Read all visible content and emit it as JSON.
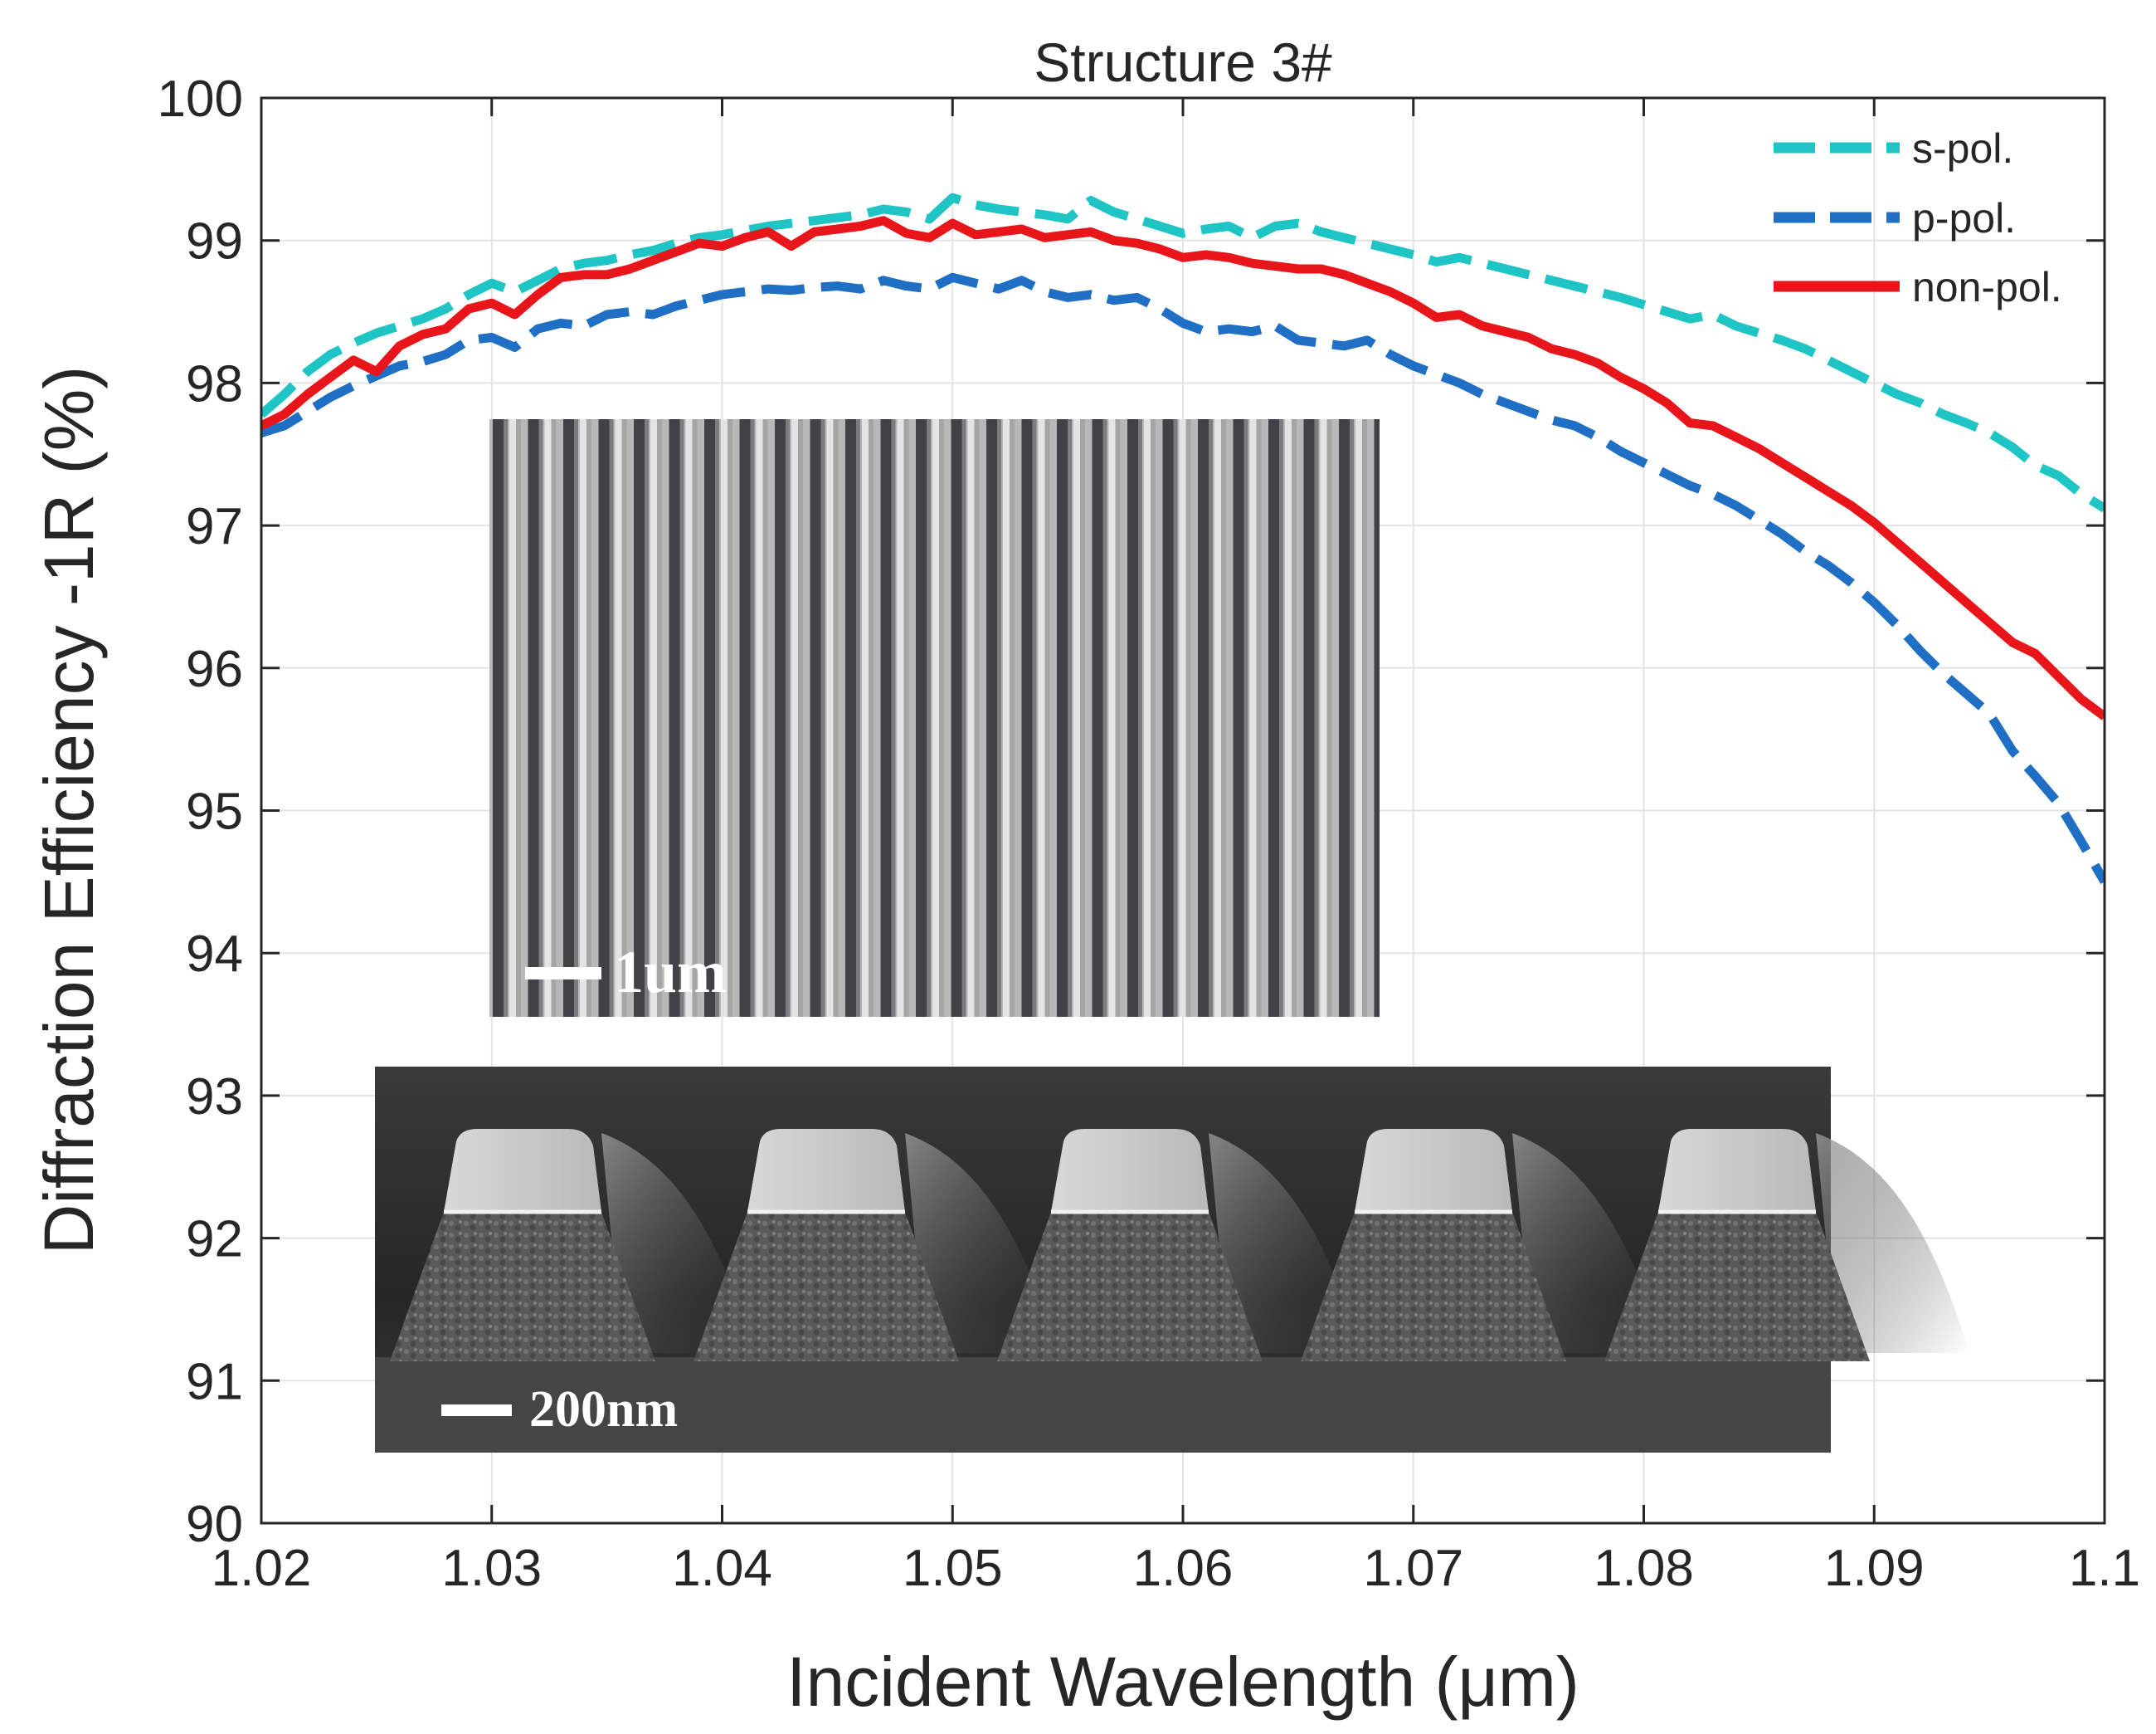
{
  "chart_data": {
    "type": "line",
    "title": "Structure 3#",
    "xlabel": "Incident Wavelength (μm)",
    "ylabel": "Diffraction Efficiency -1R (%)",
    "xlim": [
      1.02,
      1.1
    ],
    "ylim": [
      90,
      100
    ],
    "xticks": [
      1.02,
      1.03,
      1.04,
      1.05,
      1.06,
      1.07,
      1.08,
      1.09,
      1.1
    ],
    "xtick_labels": [
      "1.02",
      "1.03",
      "1.04",
      "1.05",
      "1.06",
      "1.07",
      "1.08",
      "1.09",
      "1.1"
    ],
    "yticks": [
      90,
      91,
      92,
      93,
      94,
      95,
      96,
      97,
      98,
      99,
      100
    ],
    "ytick_labels": [
      "90",
      "91",
      "92",
      "93",
      "94",
      "95",
      "96",
      "97",
      "98",
      "99",
      "100"
    ],
    "grid": true,
    "legend_position": "top-right",
    "x": [
      1.02,
      1.021,
      1.022,
      1.023,
      1.024,
      1.025,
      1.026,
      1.027,
      1.028,
      1.029,
      1.03,
      1.031,
      1.032,
      1.033,
      1.034,
      1.035,
      1.036,
      1.037,
      1.038,
      1.039,
      1.04,
      1.041,
      1.042,
      1.043,
      1.044,
      1.045,
      1.046,
      1.047,
      1.048,
      1.049,
      1.05,
      1.051,
      1.052,
      1.053,
      1.054,
      1.055,
      1.056,
      1.057,
      1.058,
      1.059,
      1.06,
      1.061,
      1.062,
      1.063,
      1.064,
      1.065,
      1.066,
      1.067,
      1.068,
      1.069,
      1.07,
      1.071,
      1.072,
      1.073,
      1.074,
      1.075,
      1.076,
      1.077,
      1.078,
      1.079,
      1.08,
      1.081,
      1.082,
      1.083,
      1.084,
      1.085,
      1.086,
      1.087,
      1.088,
      1.089,
      1.09,
      1.091,
      1.092,
      1.093,
      1.094,
      1.095,
      1.096,
      1.097,
      1.098,
      1.099,
      1.1
    ],
    "series": [
      {
        "name": "s-pol.",
        "color": "#1fc4c4",
        "style": "dashed",
        "values": [
          97.78,
          97.92,
          98.08,
          98.2,
          98.28,
          98.35,
          98.4,
          98.45,
          98.52,
          98.62,
          98.7,
          98.64,
          98.72,
          98.8,
          98.84,
          98.86,
          98.9,
          98.93,
          98.98,
          99.02,
          99.04,
          99.07,
          99.1,
          99.12,
          99.14,
          99.16,
          99.18,
          99.22,
          99.2,
          99.15,
          99.3,
          99.25,
          99.22,
          99.2,
          99.18,
          99.15,
          99.28,
          99.2,
          99.15,
          99.1,
          99.05,
          99.08,
          99.1,
          99.02,
          99.1,
          99.12,
          99.06,
          99.02,
          98.98,
          98.94,
          98.9,
          98.85,
          98.88,
          98.84,
          98.8,
          98.76,
          98.72,
          98.68,
          98.64,
          98.6,
          98.55,
          98.5,
          98.45,
          98.48,
          98.4,
          98.35,
          98.3,
          98.24,
          98.16,
          98.08,
          98.0,
          97.92,
          97.86,
          97.78,
          97.72,
          97.65,
          97.55,
          97.42,
          97.35,
          97.22,
          97.12
        ]
      },
      {
        "name": "p-pol.",
        "color": "#1f6fc4",
        "style": "dashed",
        "values": [
          97.65,
          97.7,
          97.8,
          97.9,
          97.98,
          98.05,
          98.12,
          98.15,
          98.2,
          98.3,
          98.32,
          98.25,
          98.38,
          98.42,
          98.4,
          98.48,
          98.5,
          98.48,
          98.54,
          98.58,
          98.62,
          98.64,
          98.66,
          98.65,
          98.67,
          98.68,
          98.66,
          98.72,
          98.68,
          98.66,
          98.74,
          98.7,
          98.66,
          98.72,
          98.64,
          98.6,
          98.62,
          98.58,
          98.6,
          98.52,
          98.42,
          98.36,
          98.38,
          98.36,
          98.4,
          98.3,
          98.28,
          98.26,
          98.3,
          98.2,
          98.12,
          98.06,
          98.0,
          97.92,
          97.86,
          97.8,
          97.74,
          97.7,
          97.62,
          97.52,
          97.44,
          97.36,
          97.28,
          97.22,
          97.14,
          97.04,
          96.94,
          96.82,
          96.72,
          96.6,
          96.46,
          96.3,
          96.12,
          95.96,
          95.82,
          95.68,
          95.42,
          95.24,
          95.05,
          94.78,
          94.5
        ]
      },
      {
        "name": "non-pol.",
        "color": "#e8161b",
        "style": "solid",
        "values": [
          97.7,
          97.78,
          97.92,
          98.04,
          98.16,
          98.08,
          98.26,
          98.34,
          98.38,
          98.52,
          98.56,
          98.48,
          98.62,
          98.74,
          98.76,
          98.76,
          98.8,
          98.86,
          98.92,
          98.98,
          98.96,
          99.02,
          99.06,
          98.96,
          99.06,
          99.08,
          99.1,
          99.14,
          99.05,
          99.02,
          99.12,
          99.04,
          99.06,
          99.08,
          99.02,
          99.04,
          99.06,
          99.0,
          98.98,
          98.94,
          98.88,
          98.9,
          98.88,
          98.84,
          98.82,
          98.8,
          98.8,
          98.76,
          98.7,
          98.64,
          98.56,
          98.46,
          98.48,
          98.4,
          98.36,
          98.32,
          98.24,
          98.2,
          98.14,
          98.04,
          97.96,
          97.86,
          97.72,
          97.7,
          97.62,
          97.54,
          97.44,
          97.34,
          97.24,
          97.14,
          97.02,
          96.88,
          96.74,
          96.6,
          96.46,
          96.32,
          96.18,
          96.1,
          95.94,
          95.78,
          95.66
        ]
      }
    ],
    "annotations": [
      {
        "type": "inset-image",
        "description": "top-view grating",
        "scale_bar": "1um"
      },
      {
        "type": "inset-image",
        "description": "cross-section grating",
        "scale_bar": "200nm"
      }
    ]
  }
}
